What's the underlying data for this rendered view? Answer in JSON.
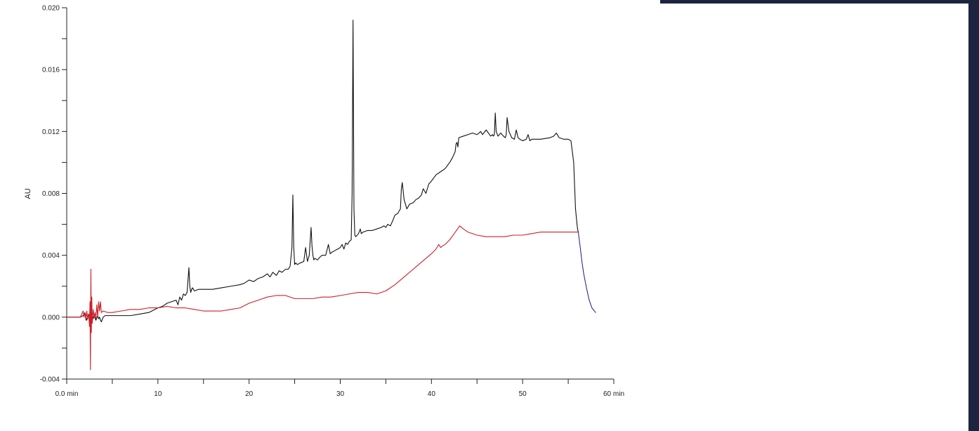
{
  "colors": {
    "trace_black": "#111111",
    "trace_red": "#cc1f2a",
    "trace_blue": "#2a2e8a",
    "axis": "#222222",
    "panel_dark": "#1d2440"
  },
  "chart_data": {
    "type": "line",
    "title": "",
    "xlabel": "",
    "ylabel": "AU",
    "xlim": [
      0,
      60
    ],
    "ylim": [
      -0.004,
      0.02
    ],
    "x_ticks": [
      0,
      5,
      10,
      15,
      20,
      25,
      30,
      35,
      40,
      45,
      50,
      55,
      60
    ],
    "x_tick_labels": [
      "0.0 min",
      "",
      "10",
      "",
      "20",
      "",
      "30",
      "",
      "40",
      "",
      "50",
      "",
      "60 min"
    ],
    "y_ticks": [
      -0.004,
      -0.002,
      0.0,
      0.002,
      0.004,
      0.006,
      0.008,
      0.01,
      0.012,
      0.014,
      0.016,
      0.018,
      0.02
    ],
    "y_tick_labels": [
      "-0.004",
      "",
      "0.000",
      "",
      "0.004",
      "",
      "0.008",
      "",
      "0.012",
      "",
      "0.016",
      "",
      "0.020"
    ],
    "grid": false,
    "series": [
      {
        "color": "#111111",
        "x": [
          0,
          1.5,
          1.8,
          2.0,
          2.2,
          2.4,
          2.6,
          2.7,
          2.8,
          2.9,
          3.0,
          3.2,
          3.4,
          3.5,
          3.6,
          3.7,
          3.8,
          4.0,
          4.2,
          4.5,
          5,
          6,
          7,
          8,
          9,
          10,
          10.5,
          11,
          11.5,
          12,
          12.2,
          12.4,
          12.6,
          12.8,
          13.0,
          13.2,
          13.4,
          13.5,
          13.6,
          13.7,
          13.8,
          14.0,
          14.5,
          15,
          16,
          17,
          18,
          19,
          19.5,
          20,
          20.5,
          21,
          21.5,
          22,
          22.3,
          22.6,
          23,
          23.3,
          23.6,
          24,
          24.3,
          24.5,
          24.7,
          24.8,
          24.9,
          25.0,
          25.1,
          25.3,
          25.6,
          26,
          26.2,
          26.4,
          26.6,
          26.8,
          26.9,
          27.0,
          27.1,
          27.2,
          27.5,
          27.8,
          28,
          28.4,
          28.7,
          28.9,
          29.1,
          29.4,
          29.7,
          30,
          30.2,
          30.4,
          30.6,
          30.8,
          31.0,
          31.2,
          31.3,
          31.4,
          31.5,
          31.6,
          31.7,
          32,
          32.2,
          32.3,
          32.5,
          33,
          33.5,
          34,
          34.5,
          34.8,
          35,
          35.2,
          35.5,
          35.8,
          36,
          36.3,
          36.5,
          36.6,
          36.7,
          36.8,
          37,
          37.3,
          37.6,
          38,
          38.3,
          38.6,
          38.9,
          39.1,
          39.4,
          39.7,
          40,
          40.5,
          41,
          41.5,
          42,
          42.3,
          42.6,
          42.7,
          42.8,
          42.9,
          43,
          43.5,
          44,
          44.5,
          45,
          45.2,
          45.4,
          45.6,
          46,
          46.5,
          46.7,
          46.8,
          46.9,
          47.0,
          47.1,
          47.3,
          47.6,
          47.9,
          48.1,
          48.2,
          48.3,
          48.5,
          48.8,
          49.1,
          49.3,
          49.5,
          49.7,
          50,
          50.4,
          50.6,
          50.8,
          51,
          52,
          53,
          53.4,
          53.7,
          54,
          54.5,
          55,
          55.3,
          55.6,
          55.8,
          56.0,
          56.1
        ],
        "y": [
          0.0,
          0.0,
          0.0001,
          0.0003,
          -0.0002,
          0.0002,
          0.0,
          -0.0003,
          0.0002,
          -0.0001,
          0.0001,
          -0.0002,
          0.0001,
          -0.0001,
          0.0,
          -0.0002,
          -0.0003,
          0.0,
          0.0001,
          0.0001,
          0.0001,
          0.0001,
          0.0001,
          0.0002,
          0.0003,
          0.0006,
          0.0007,
          0.0009,
          0.001,
          0.0011,
          0.0008,
          0.0013,
          0.0011,
          0.0015,
          0.0014,
          0.0016,
          0.0032,
          0.002,
          0.0016,
          0.0018,
          0.0019,
          0.0017,
          0.0018,
          0.0018,
          0.0018,
          0.0019,
          0.002,
          0.0021,
          0.0022,
          0.0024,
          0.0023,
          0.0025,
          0.0026,
          0.0028,
          0.0026,
          0.0029,
          0.0027,
          0.003,
          0.0029,
          0.0031,
          0.0031,
          0.0033,
          0.0045,
          0.0079,
          0.0045,
          0.0034,
          0.0035,
          0.0034,
          0.0035,
          0.0036,
          0.0045,
          0.0036,
          0.004,
          0.0058,
          0.0046,
          0.004,
          0.0037,
          0.0038,
          0.0037,
          0.0039,
          0.004,
          0.004,
          0.0047,
          0.0041,
          0.0042,
          0.0043,
          0.0044,
          0.0045,
          0.0047,
          0.0044,
          0.0048,
          0.0047,
          0.0049,
          0.005,
          0.008,
          0.0192,
          0.007,
          0.0053,
          0.0052,
          0.0054,
          0.0057,
          0.0054,
          0.0055,
          0.0056,
          0.0056,
          0.0057,
          0.0058,
          0.0059,
          0.0058,
          0.006,
          0.0059,
          0.0063,
          0.0066,
          0.0067,
          0.0069,
          0.007,
          0.0083,
          0.0087,
          0.0076,
          0.007,
          0.0073,
          0.0074,
          0.0076,
          0.0077,
          0.0079,
          0.0083,
          0.008,
          0.0086,
          0.0088,
          0.0092,
          0.0094,
          0.0096,
          0.01,
          0.0103,
          0.0107,
          0.0112,
          0.0113,
          0.011,
          0.0116,
          0.0117,
          0.0118,
          0.0119,
          0.0118,
          0.0119,
          0.012,
          0.0118,
          0.0121,
          0.0117,
          0.0118,
          0.0117,
          0.0118,
          0.0132,
          0.012,
          0.0117,
          0.0119,
          0.0117,
          0.0116,
          0.0118,
          0.0129,
          0.012,
          0.0116,
          0.0115,
          0.0121,
          0.0116,
          0.0115,
          0.0114,
          0.0115,
          0.0118,
          0.0114,
          0.0115,
          0.0115,
          0.0116,
          0.0117,
          0.0119,
          0.0116,
          0.0115,
          0.0115,
          0.0114,
          0.01,
          0.007,
          0.0058,
          0.0055
        ]
      },
      {
        "color": "#cc1f2a",
        "x": [
          0,
          1.5,
          1.8,
          1.9,
          2.0,
          2.1,
          2.2,
          2.3,
          2.4,
          2.5,
          2.55,
          2.6,
          2.65,
          2.7,
          2.75,
          2.8,
          2.9,
          3.0,
          3.1,
          3.2,
          3.3,
          3.4,
          3.5,
          3.6,
          3.7,
          3.8,
          4.0,
          4.5,
          5,
          6,
          7,
          8,
          9,
          10,
          11,
          12,
          13,
          14,
          15,
          16,
          17,
          18,
          19,
          20,
          21,
          22,
          23,
          24,
          25,
          26,
          27,
          28,
          29,
          30,
          31,
          32,
          33,
          34,
          35,
          36,
          37,
          38,
          39,
          40,
          40.5,
          40.8,
          41.0,
          41.2,
          41.5,
          42,
          42.5,
          43.1,
          43.5,
          44,
          45,
          46,
          47,
          48,
          49,
          50,
          51,
          52,
          53,
          54,
          55,
          56.1
        ],
        "y": [
          0.0,
          0.0,
          0.0004,
          0.0,
          0.0003,
          -0.0002,
          0.0004,
          -0.0001,
          0.0002,
          -0.0006,
          0.001,
          -0.0034,
          0.0031,
          -0.001,
          0.0013,
          -0.0004,
          0.0005,
          0.0,
          0.0003,
          -0.0001,
          0.0008,
          0.0,
          0.001,
          0.0004,
          0.001,
          0.0003,
          0.0004,
          0.0003,
          0.0003,
          0.0004,
          0.0005,
          0.0005,
          0.0006,
          0.0006,
          0.0007,
          0.0006,
          0.0006,
          0.0005,
          0.0004,
          0.0004,
          0.0004,
          0.0005,
          0.0006,
          0.0009,
          0.0011,
          0.0013,
          0.0014,
          0.0014,
          0.0012,
          0.0012,
          0.0012,
          0.0013,
          0.0013,
          0.0014,
          0.0015,
          0.0016,
          0.0016,
          0.0015,
          0.0017,
          0.0021,
          0.0026,
          0.0031,
          0.0036,
          0.0041,
          0.0044,
          0.0047,
          0.0045,
          0.0046,
          0.0047,
          0.005,
          0.0054,
          0.0059,
          0.0057,
          0.0055,
          0.0053,
          0.0052,
          0.0052,
          0.0052,
          0.0053,
          0.0053,
          0.0054,
          0.0055,
          0.0055,
          0.0055,
          0.0055,
          0.0055
        ]
      },
      {
        "color": "#2a2e8a",
        "x": [
          56.1,
          56.3,
          56.5,
          56.7,
          57.0,
          57.3,
          57.6,
          58.0
        ],
        "y": [
          0.0055,
          0.0046,
          0.0036,
          0.0028,
          0.0019,
          0.0011,
          0.0006,
          0.0003
        ]
      }
    ]
  }
}
